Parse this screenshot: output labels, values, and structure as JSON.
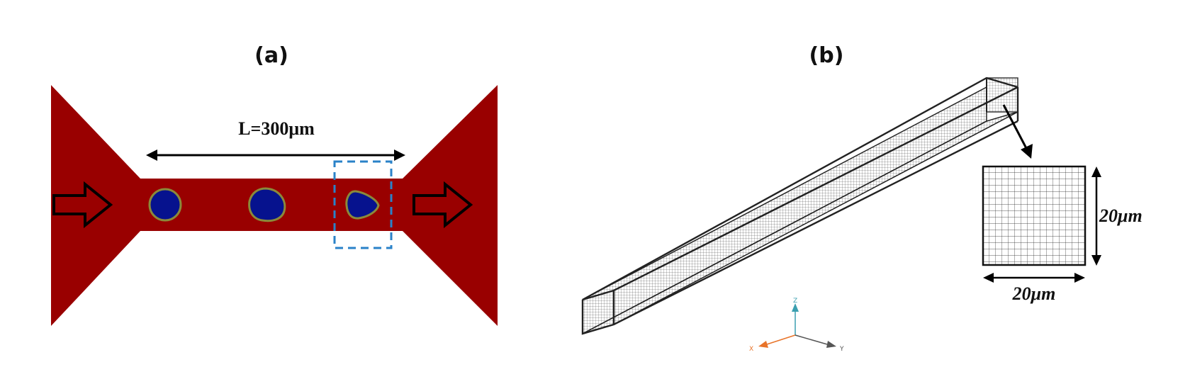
{
  "panel_a": {
    "label": "(a)",
    "length_label": "L=300μm",
    "colors": {
      "fluid": "#990000",
      "droplet": "#06128e",
      "droplet_rim": "#8a8a3a",
      "highlight_box": "#2a82c8"
    }
  },
  "panel_b": {
    "label": "(b)",
    "cross_section_height_label": "20μm",
    "cross_section_width_label": "20μm",
    "axes": {
      "z": "Z",
      "x": "X",
      "y": "Y"
    },
    "colors": {
      "mesh": "#222222",
      "z_axis": "#3a9fb0",
      "x_axis": "#e8742a",
      "y_axis": "#555555"
    }
  }
}
